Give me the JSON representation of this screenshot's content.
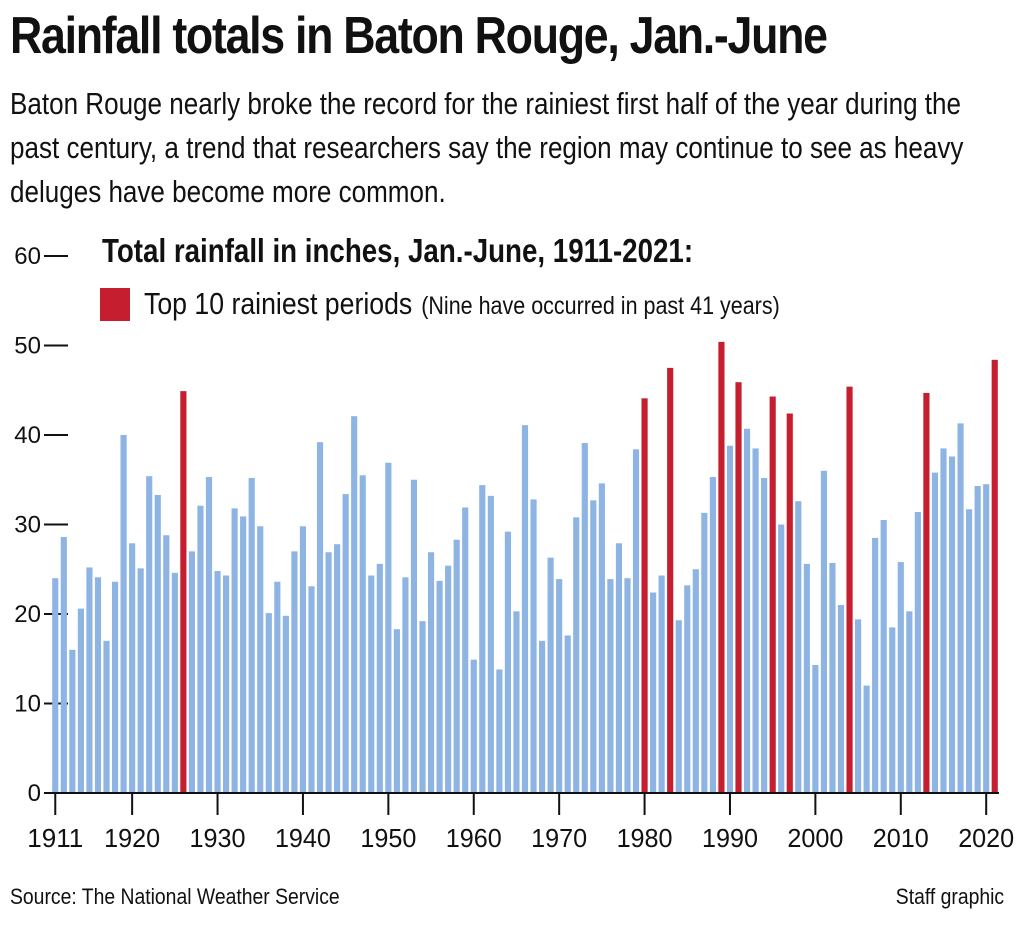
{
  "title": "Rainfall totals in Baton Rouge, Jan.-June",
  "subtitle": "Baton Rouge nearly broke the record for the rainiest first half of the year during the past century, a trend that researchers say the region may continue to see as heavy deluges have become more common.",
  "legend": {
    "label": "Top 10 rainiest periods",
    "note": "(Nine have occurred in past 41 years)"
  },
  "footer": {
    "source": "Source: The National Weather Service",
    "credit": "Staff graphic"
  },
  "colors": {
    "normal": "#8db4e2",
    "top10": "#c41e2f",
    "axis": "#111111"
  },
  "chart_data": {
    "type": "bar",
    "title": "Total rainfall in inches, Jan.-June, 1911-2021:",
    "xlabel": "",
    "ylabel": "",
    "ylim": [
      0,
      60
    ],
    "yticks": [
      0,
      10,
      20,
      30,
      40,
      50,
      60
    ],
    "xticks": [
      1911,
      1920,
      1930,
      1940,
      1950,
      1960,
      1970,
      1980,
      1990,
      2000,
      2010,
      2020
    ],
    "start_year": 1911,
    "end_year": 2021,
    "top10_years": [
      1926,
      1980,
      1983,
      1989,
      1991,
      1995,
      1997,
      2004,
      2013,
      2021
    ],
    "values": [
      24.0,
      28.6,
      16.0,
      20.6,
      25.2,
      24.1,
      17.0,
      23.6,
      40.0,
      27.9,
      25.1,
      35.4,
      33.3,
      28.8,
      24.6,
      44.9,
      27.0,
      32.1,
      35.3,
      24.8,
      24.3,
      31.8,
      30.9,
      35.2,
      29.8,
      20.1,
      23.6,
      19.8,
      27.0,
      29.8,
      23.1,
      39.2,
      26.9,
      27.8,
      33.4,
      42.1,
      35.5,
      24.3,
      25.6,
      36.9,
      18.3,
      24.1,
      35.0,
      19.2,
      26.9,
      23.7,
      25.4,
      28.3,
      31.9,
      14.9,
      34.4,
      33.2,
      13.8,
      29.2,
      20.3,
      41.1,
      32.8,
      17.0,
      26.3,
      23.9,
      17.6,
      30.8,
      39.1,
      32.7,
      34.6,
      23.9,
      27.9,
      24.0,
      38.4,
      44.1,
      22.4,
      24.3,
      47.5,
      19.3,
      23.2,
      25.0,
      31.3,
      35.3,
      50.4,
      38.8,
      45.9,
      40.7,
      38.5,
      35.2,
      44.3,
      30.0,
      42.4,
      32.6,
      25.6,
      14.3,
      36.0,
      25.7,
      21.0,
      45.4,
      19.4,
      12.0,
      28.5,
      30.5,
      18.5,
      25.8,
      20.3,
      31.4,
      44.7,
      35.8,
      38.5,
      37.6,
      41.3,
      31.7,
      34.3,
      34.5,
      48.4
    ]
  }
}
